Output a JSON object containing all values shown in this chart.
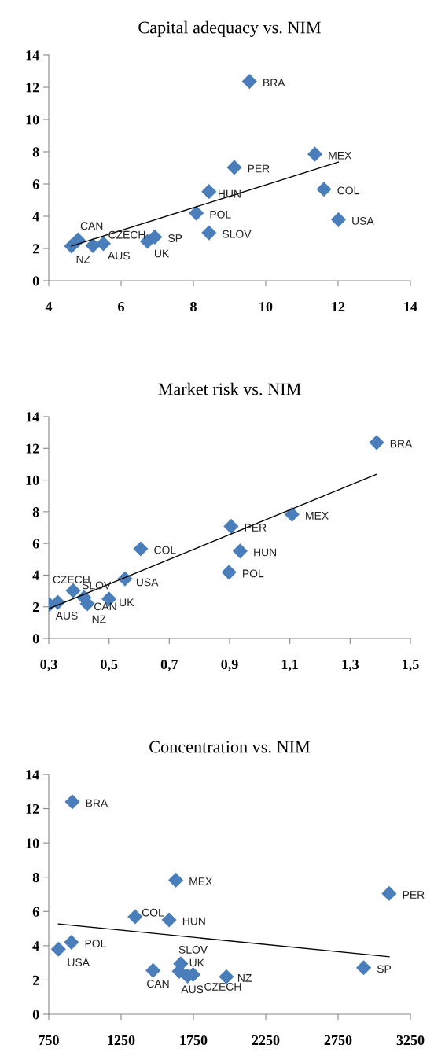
{
  "chart_data": [
    {
      "type": "scatter",
      "title": "Capital adequacy vs. NIM",
      "marker": "diamond",
      "grid": false,
      "legend": false,
      "xlim": [
        4,
        14
      ],
      "xticks": [
        4,
        6,
        8,
        10,
        12,
        14
      ],
      "ylim": [
        0,
        14
      ],
      "yticks": [
        0,
        2,
        4,
        6,
        8,
        10,
        12,
        14
      ],
      "series": [
        {
          "color": "#4a7ebb",
          "x": [
            9.55,
            11.36,
            9.13,
            8.43,
            11.61,
            8.08,
            12.01,
            8.43,
            6.93,
            6.73,
            5.22,
            4.81,
            4.63,
            5.51
          ],
          "values": [
            12.36,
            7.85,
            7.03,
            5.53,
            5.67,
            4.19,
            3.79,
            2.97,
            2.71,
            2.44,
            2.18,
            2.53,
            2.15,
            2.3
          ]
        },
        {
          "type": "line",
          "color": "#000000",
          "marker": "none",
          "x": [
            4.63,
            12.01
          ],
          "values": [
            2.15,
            7.36
          ]
        }
      ],
      "annotations": [
        {
          "text": "BRA",
          "x": 9.55,
          "y": 12.36
        },
        {
          "text": "MEX",
          "x": 11.36,
          "y": 7.85
        },
        {
          "text": "PER",
          "x": 9.13,
          "y": 7.03
        },
        {
          "text": "HUN",
          "x": 8.43,
          "y": 5.53
        },
        {
          "text": "COL",
          "x": 11.61,
          "y": 5.67
        },
        {
          "text": "POL",
          "x": 8.08,
          "y": 4.19
        },
        {
          "text": "USA",
          "x": 12.01,
          "y": 3.79
        },
        {
          "text": "SLOV",
          "x": 8.43,
          "y": 2.97
        },
        {
          "text": "SP",
          "x": 6.93,
          "y": 2.71
        },
        {
          "text": "UK",
          "x": 6.73,
          "y": 2.44
        },
        {
          "text": "CZECH",
          "x": 5.22,
          "y": 2.18
        },
        {
          "text": "CAN",
          "x": 4.81,
          "y": 2.53
        },
        {
          "text": "NZ",
          "x": 4.63,
          "y": 2.15
        },
        {
          "text": "AUS",
          "x": 5.51,
          "y": 2.3
        }
      ]
    },
    {
      "type": "scatter",
      "title": "Market risk vs. NIM",
      "marker": "diamond",
      "grid": false,
      "legend": false,
      "xlim": [
        0.3,
        1.5
      ],
      "xticks": [
        {
          "value": 0.3,
          "label": "0,3"
        },
        {
          "value": 0.5,
          "label": "0,5"
        },
        {
          "value": 0.7,
          "label": "0,7"
        },
        {
          "value": 0.9,
          "label": "0,9"
        },
        {
          "value": 1.1,
          "label": "1,1"
        },
        {
          "value": 1.3,
          "label": "1,3"
        },
        {
          "value": 1.5,
          "label": "1,5"
        }
      ],
      "ylim": [
        0,
        14
      ],
      "yticks": [
        0,
        2,
        4,
        6,
        8,
        10,
        12,
        14
      ],
      "series": [
        {
          "color": "#4a7ebb",
          "x": [
            1.388,
            1.107,
            0.905,
            0.935,
            0.898,
            0.605,
            0.553,
            0.381,
            0.417,
            0.5,
            0.428,
            0.33,
            0.302
          ],
          "values": [
            12.37,
            7.83,
            7.08,
            5.52,
            4.18,
            5.66,
            3.77,
            3.02,
            2.58,
            2.49,
            2.19,
            2.28,
            2.14
          ]
        },
        {
          "type": "line",
          "color": "#000000",
          "marker": "none",
          "x": [
            0.3,
            1.388
          ],
          "values": [
            1.87,
            10.37
          ]
        }
      ],
      "annotations": [
        {
          "text": "BRA",
          "x": 1.388,
          "y": 12.37
        },
        {
          "text": "MEX",
          "x": 1.107,
          "y": 7.83
        },
        {
          "text": "PER",
          "x": 0.905,
          "y": 7.08
        },
        {
          "text": "HUN",
          "x": 0.935,
          "y": 5.52
        },
        {
          "text": "POL",
          "x": 0.898,
          "y": 4.18
        },
        {
          "text": "COL",
          "x": 0.605,
          "y": 5.66
        },
        {
          "text": "USA",
          "x": 0.553,
          "y": 3.77
        },
        {
          "text": "SLOV",
          "x": 0.381,
          "y": 3.02
        },
        {
          "text": "CAN",
          "x": 0.417,
          "y": 2.58
        },
        {
          "text": "UK",
          "x": 0.5,
          "y": 2.49
        },
        {
          "text": "NZ",
          "x": 0.428,
          "y": 2.19
        },
        {
          "text": "AUS",
          "x": 0.33,
          "y": 2.28
        },
        {
          "text": "CZECH",
          "x": 0.302,
          "y": 2.14
        }
      ]
    },
    {
      "type": "scatter",
      "title": "Concentration vs. NIM",
      "marker": "diamond",
      "grid": false,
      "legend": false,
      "xlim": [
        750,
        3250
      ],
      "xticks": [
        750,
        1250,
        1750,
        2250,
        2750,
        3250
      ],
      "ylim": [
        0,
        14
      ],
      "yticks": [
        0,
        2,
        4,
        6,
        8,
        10,
        12,
        14
      ],
      "series": [
        {
          "color": "#4a7ebb",
          "x": [
            913,
            1628,
            3103,
            1347,
            1582,
            907,
            817,
            1662,
            1653,
            1710,
            1748,
            1471,
            1978,
            2927
          ],
          "values": [
            12.4,
            7.83,
            7.05,
            5.69,
            5.51,
            4.2,
            3.8,
            2.95,
            2.51,
            2.23,
            2.32,
            2.56,
            2.19,
            2.72
          ]
        },
        {
          "type": "line",
          "color": "#000000",
          "marker": "none",
          "x": [
            817,
            3103
          ],
          "values": [
            5.27,
            3.36
          ]
        }
      ],
      "annotations": [
        {
          "text": "BRA",
          "x": 913,
          "y": 12.4
        },
        {
          "text": "MEX",
          "x": 1628,
          "y": 7.83
        },
        {
          "text": "PER",
          "x": 3103,
          "y": 7.05
        },
        {
          "text": "COL",
          "x": 1347,
          "y": 5.69
        },
        {
          "text": "HUN",
          "x": 1582,
          "y": 5.51
        },
        {
          "text": "POL",
          "x": 907,
          "y": 4.2
        },
        {
          "text": "USA",
          "x": 817,
          "y": 3.8
        },
        {
          "text": "SLOV",
          "x": 1662,
          "y": 2.95
        },
        {
          "text": "UK",
          "x": 1653,
          "y": 2.51
        },
        {
          "text": "AUS",
          "x": 1710,
          "y": 2.23
        },
        {
          "text": "CZECH",
          "x": 1748,
          "y": 2.32
        },
        {
          "text": "CAN",
          "x": 1471,
          "y": 2.56
        },
        {
          "text": "NZ",
          "x": 1978,
          "y": 2.19
        },
        {
          "text": "SP",
          "x": 2927,
          "y": 2.72
        }
      ]
    }
  ]
}
